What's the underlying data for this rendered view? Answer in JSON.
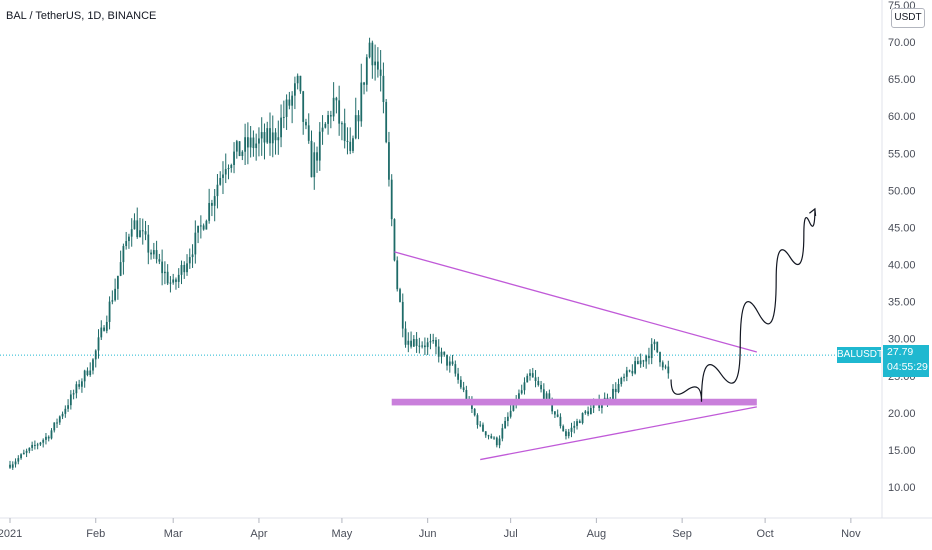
{
  "header": {
    "symbol": "BAL / TetherUS, 1D, BINANCE",
    "currency": "USDT"
  },
  "price_badge": {
    "symbol": "BALUSDT",
    "price": "27.79",
    "countdown": "04:55:29"
  },
  "colors": {
    "candle": "#1e6b68",
    "annotation": "#c05ad8",
    "support_band": "#c97fdb",
    "price_line": "#1fb8d0",
    "projection": "#131722"
  },
  "chart_data": {
    "type": "candlestick",
    "title": "BAL / TetherUS, 1D, BINANCE",
    "y_axis_ticks": [
      "75.00",
      "70.00",
      "65.00",
      "60.00",
      "55.00",
      "50.00",
      "45.00",
      "40.00",
      "35.00",
      "30.00",
      "25.00",
      "20.00",
      "15.00",
      "10.00"
    ],
    "x_axis_ticks": [
      "2021",
      "Feb",
      "Mar",
      "Apr",
      "May",
      "Jun",
      "Jul",
      "Aug",
      "Sep",
      "Oct",
      "Nov"
    ],
    "ylim": [
      5,
      75
    ],
    "last_price": 27.79,
    "approx_close_path": [
      {
        "date": "2021-01-01",
        "price": 13
      },
      {
        "date": "2021-01-15",
        "price": 17
      },
      {
        "date": "2021-01-31",
        "price": 27
      },
      {
        "date": "2021-02-08",
        "price": 37
      },
      {
        "date": "2021-02-14",
        "price": 46
      },
      {
        "date": "2021-02-22",
        "price": 41
      },
      {
        "date": "2021-03-01",
        "price": 37
      },
      {
        "date": "2021-03-10",
        "price": 44
      },
      {
        "date": "2021-03-20",
        "price": 54
      },
      {
        "date": "2021-03-28",
        "price": 56
      },
      {
        "date": "2021-04-06",
        "price": 57
      },
      {
        "date": "2021-04-15",
        "price": 64
      },
      {
        "date": "2021-04-20",
        "price": 53
      },
      {
        "date": "2021-04-28",
        "price": 62
      },
      {
        "date": "2021-05-04",
        "price": 54
      },
      {
        "date": "2021-05-11",
        "price": 70
      },
      {
        "date": "2021-05-15",
        "price": 65
      },
      {
        "date": "2021-05-19",
        "price": 46
      },
      {
        "date": "2021-05-21",
        "price": 37
      },
      {
        "date": "2021-05-24",
        "price": 30
      },
      {
        "date": "2021-06-03",
        "price": 29
      },
      {
        "date": "2021-06-10",
        "price": 26
      },
      {
        "date": "2021-06-20",
        "price": 18
      },
      {
        "date": "2021-06-26",
        "price": 16
      },
      {
        "date": "2021-07-02",
        "price": 21
      },
      {
        "date": "2021-07-08",
        "price": 25
      },
      {
        "date": "2021-07-14",
        "price": 22
      },
      {
        "date": "2021-07-21",
        "price": 17
      },
      {
        "date": "2021-07-28",
        "price": 20
      },
      {
        "date": "2021-08-05",
        "price": 22
      },
      {
        "date": "2021-08-12",
        "price": 25
      },
      {
        "date": "2021-08-22",
        "price": 29
      },
      {
        "date": "2021-08-26",
        "price": 26
      },
      {
        "date": "2021-08-27",
        "price": 25
      }
    ],
    "annotations": {
      "descending_resistance": [
        {
          "date": "2021-05-20",
          "price": 41.7
        },
        {
          "date": "2021-09-28",
          "price": 28.2
        }
      ],
      "ascending_support": [
        {
          "date": "2021-06-20",
          "price": 13.7
        },
        {
          "date": "2021-09-28",
          "price": 20.8
        }
      ],
      "horizontal_support_zone": {
        "from": "2021-05-19",
        "to": "2021-09-28",
        "low": 21.0,
        "high": 21.9
      },
      "projected_path": [
        {
          "date": "2021-08-28",
          "price": 24.5
        },
        {
          "date": "2021-09-08",
          "price": 21.5
        },
        {
          "date": "2021-09-22",
          "price": 29
        },
        {
          "date": "2021-10-05",
          "price": 38
        },
        {
          "date": "2021-10-15",
          "price": 44
        },
        {
          "date": "2021-10-19",
          "price": 47.5
        }
      ]
    }
  }
}
